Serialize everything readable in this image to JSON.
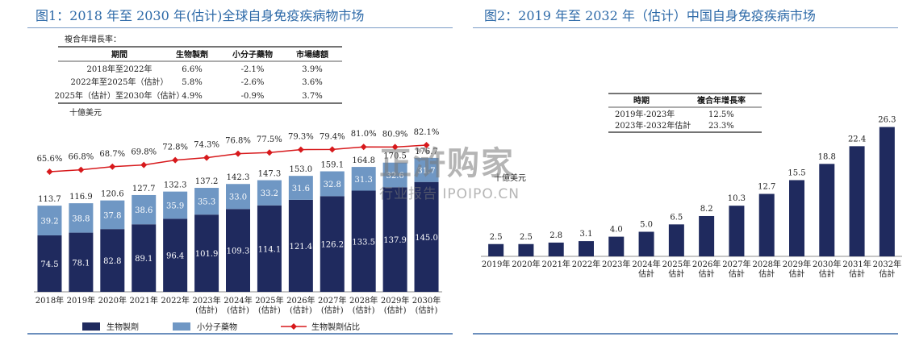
{
  "fig1": {
    "title": "图1：2018 年至 2030 年(估计)全球自身免疫疾病物市场",
    "table": {
      "caption": "複合年增長率：",
      "headers": [
        "期間",
        "生物製劑",
        "小分子藥物",
        "市場總額"
      ],
      "rows": [
        [
          "2018年至2022年",
          "6.6%",
          "-2.1%",
          "3.9%"
        ],
        [
          "2022年至2025年（估計）",
          "5.8%",
          "-2.6%",
          "3.6%"
        ],
        [
          "2025年（估計）至2030年（估計）",
          "4.9%",
          "-0.9%",
          "3.7%"
        ]
      ]
    },
    "unit": "十億美元",
    "legend": [
      "生物製劑",
      "小分子藥物",
      "生物製劑佔比"
    ],
    "colors": {
      "bio": "#1f2a5e",
      "small": "#6f97c4",
      "line": "#d7191c"
    }
  },
  "fig2": {
    "title": "图2：2019 年至 2032 年（估计）中国自身免疫疾病市场",
    "table": {
      "headers": [
        "時期",
        "複合年增長率"
      ],
      "rows": [
        [
          "2019年-2023年",
          "12.5%"
        ],
        [
          "2023年-2032年估計",
          "23.3%"
        ]
      ]
    },
    "unit": "十億美元",
    "colors": {
      "bar": "#1f2a5e"
    }
  },
  "watermark": {
    "big": "正浒购家",
    "small": "行业报告 IPOIPO.CN"
  },
  "chart_data": [
    {
      "type": "bar",
      "stacked": true,
      "title": "图1：2018 年至 2030 年(估计)全球自身免疫疾病物市场",
      "ylabel": "十億美元",
      "categories": [
        "2018年",
        "2019年",
        "2020年",
        "2021年",
        "2022年",
        "2023年\n(估計)",
        "2024年\n(估計)",
        "2025年\n(估計)",
        "2026年\n(估計)",
        "2027年\n(估計)",
        "2028年\n(估計)",
        "2029年\n(估計)",
        "2030年\n(估計)"
      ],
      "series": [
        {
          "name": "生物製劑",
          "values": [
            74.5,
            78.1,
            82.8,
            89.1,
            96.4,
            101.9,
            109.3,
            114.1,
            121.4,
            126.2,
            133.5,
            137.9,
            145.0
          ]
        },
        {
          "name": "小分子藥物",
          "values": [
            39.2,
            38.8,
            37.8,
            38.6,
            35.9,
            35.3,
            33.0,
            33.2,
            31.6,
            32.8,
            31.3,
            32.6,
            31.7
          ]
        }
      ],
      "totals": [
        113.7,
        116.9,
        120.6,
        127.7,
        132.3,
        137.2,
        142.3,
        147.3,
        153.0,
        159.1,
        164.8,
        170.5,
        176.7
      ],
      "line": {
        "name": "生物製劑佔比",
        "values": [
          "65.6%",
          "66.8%",
          "68.7%",
          "69.8%",
          "72.8%",
          "74.3%",
          "76.8%",
          "77.5%",
          "79.3%",
          "79.4%",
          "81.0%",
          "80.9%",
          "82.1%"
        ],
        "numeric": [
          65.6,
          66.8,
          68.7,
          69.8,
          72.8,
          74.3,
          76.8,
          77.5,
          79.3,
          79.4,
          81.0,
          80.9,
          82.1
        ]
      },
      "legend_position": "bottom",
      "grid": false
    },
    {
      "type": "bar",
      "title": "图2：2019 年至 2032 年（估计）中国自身免疫疾病市场",
      "ylabel": "十億美元",
      "categories": [
        "2019年",
        "2020年",
        "2021年",
        "2022年",
        "2023年",
        "2024年\n估計",
        "2025年\n估計",
        "2026年\n估計",
        "2027年\n估計",
        "2028年\n估計",
        "2029年\n估計",
        "2030年\n估計",
        "2031年\n估計",
        "2032年\n估計"
      ],
      "values": [
        2.5,
        2.5,
        2.8,
        3.1,
        4.0,
        5.0,
        6.5,
        8.2,
        10.3,
        12.7,
        15.5,
        18.8,
        22.4,
        26.3
      ],
      "grid": false
    }
  ]
}
